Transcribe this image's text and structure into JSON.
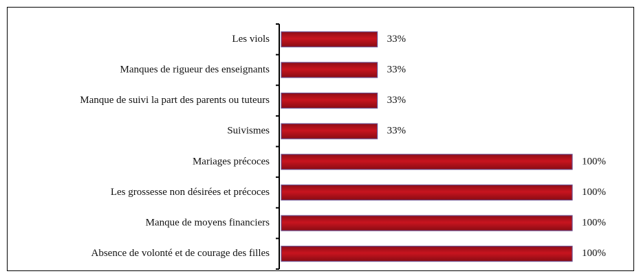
{
  "chart_data": {
    "type": "bar",
    "orientation": "horizontal",
    "categories": [
      "Les viols",
      "Manques de rigueur des enseignants",
      "Manque de suivi la part des parents ou tuteurs",
      "Suivismes",
      "Mariages précoces",
      "Les grossesse non désirées et précoces",
      "Manque de moyens financiers",
      "Absence de volonté et de courage des filles"
    ],
    "values": [
      33,
      33,
      33,
      33,
      100,
      100,
      100,
      100
    ],
    "value_labels": [
      "33%",
      "33%",
      "33%",
      "33%",
      "100%",
      "100%",
      "100%",
      "100%"
    ],
    "color": "#b5121b"
  }
}
